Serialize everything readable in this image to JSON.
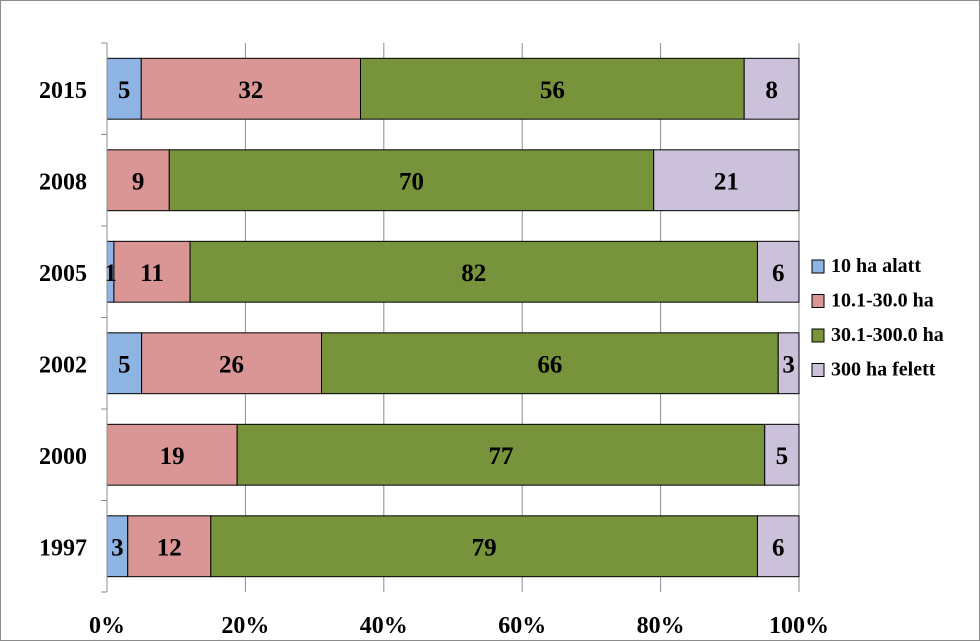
{
  "chart_data": {
    "type": "bar",
    "orientation": "horizontal",
    "stacking": "percent",
    "categories": [
      "2015",
      "2008",
      "2005",
      "2002",
      "2000",
      "1997"
    ],
    "series": [
      {
        "name": "10 ha alatt",
        "color": "#8eb4e3",
        "values": [
          5,
          0,
          1,
          5,
          0,
          3
        ]
      },
      {
        "name": "10.1-30.0 ha",
        "color": "#d99694",
        "values": [
          32,
          9,
          11,
          26,
          19,
          12
        ]
      },
      {
        "name": "30.1-300.0 ha",
        "color": "#77933c",
        "values": [
          56,
          70,
          82,
          66,
          77,
          79
        ]
      },
      {
        "name": "300 ha felett",
        "color": "#ccc1da",
        "values": [
          8,
          21,
          6,
          3,
          5,
          6
        ]
      }
    ],
    "xlim": [
      0,
      100
    ],
    "xticks": [
      "0%",
      "20%",
      "40%",
      "60%",
      "80%",
      "100%"
    ],
    "grid": true,
    "legend_position": "right",
    "title": "",
    "xlabel": "",
    "ylabel": ""
  }
}
